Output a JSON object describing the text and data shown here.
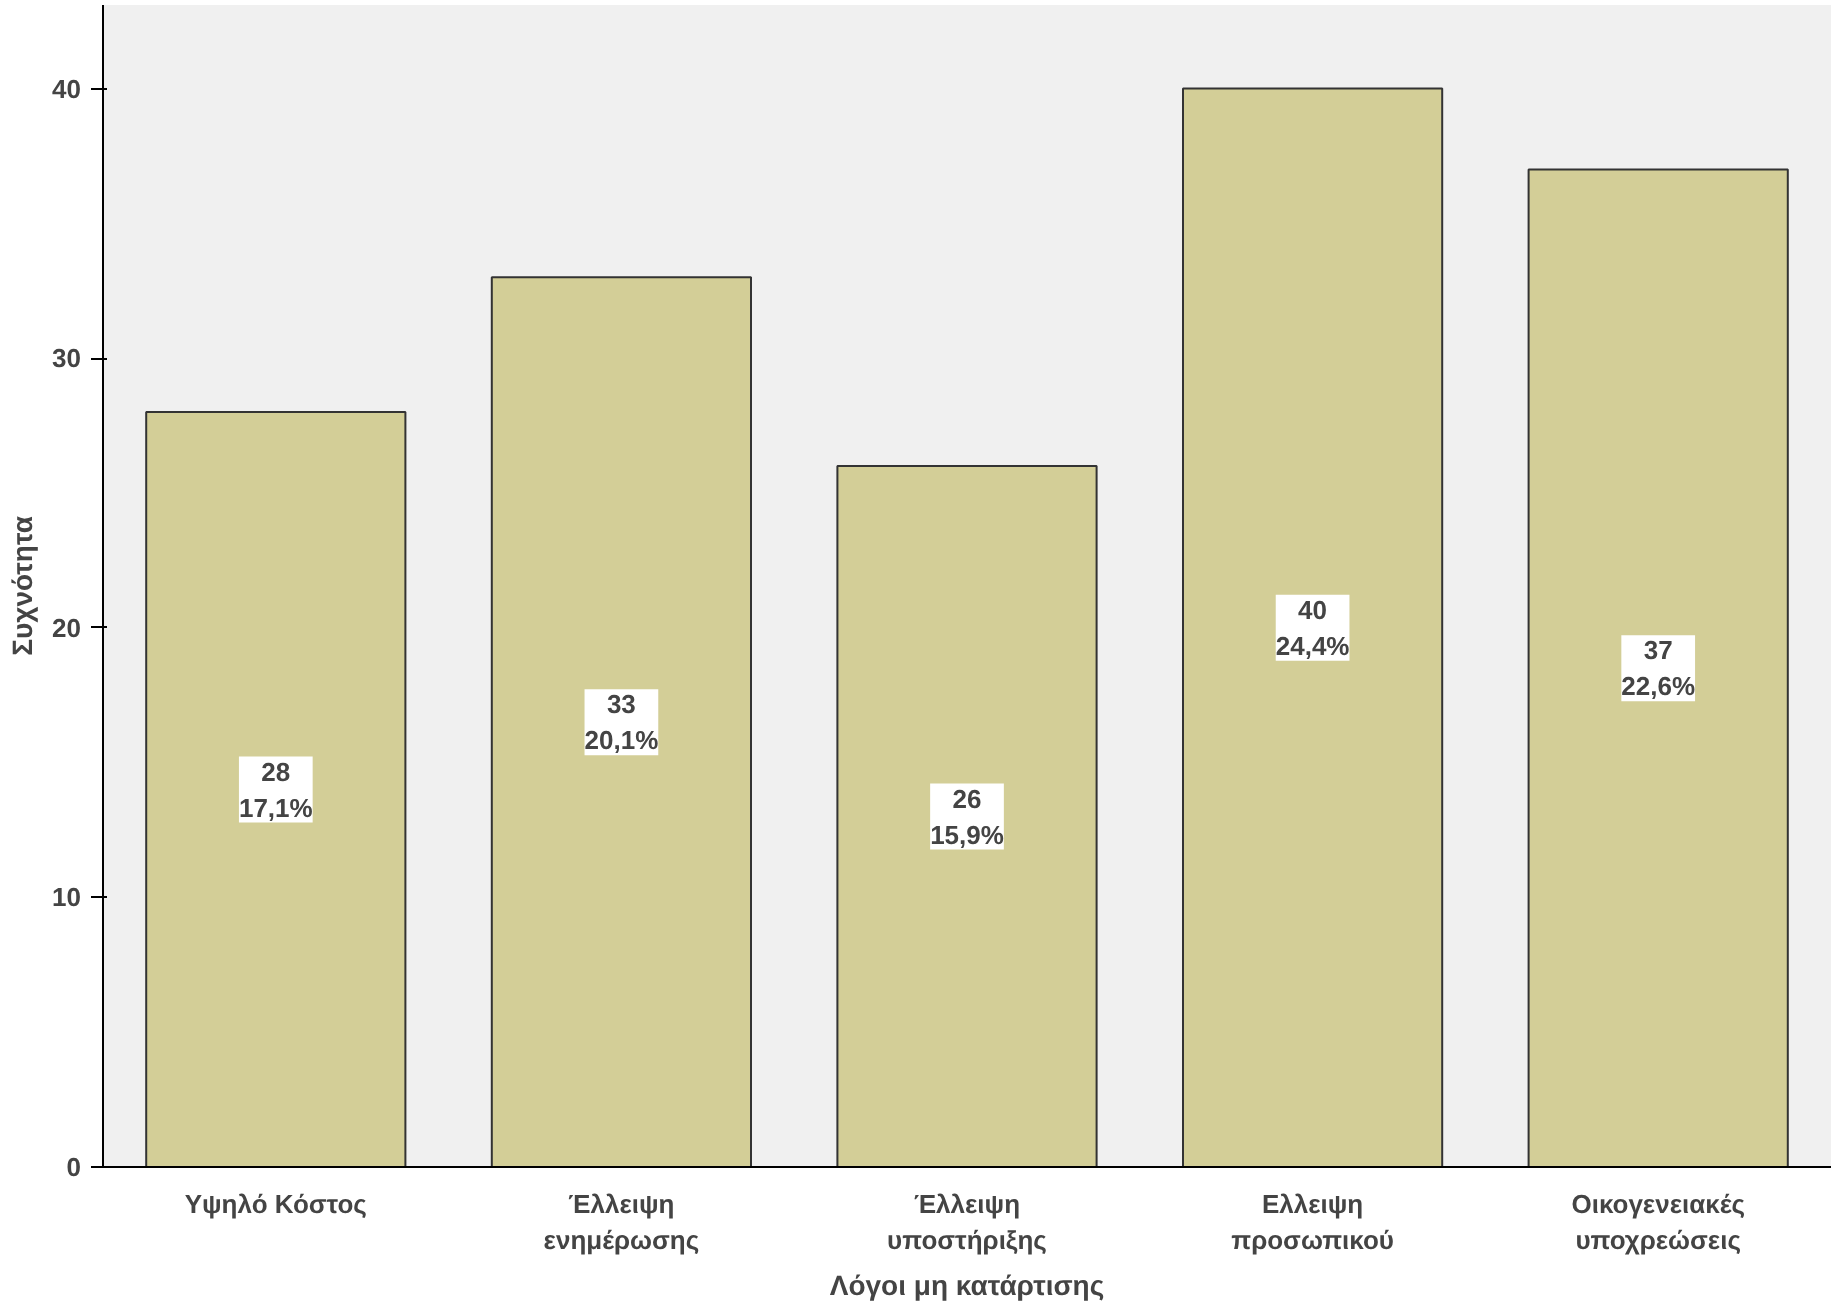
{
  "chart_data": {
    "type": "bar",
    "xlabel": "Λόγοι μη κατάρτισης",
    "ylabel": "Συχνότητα",
    "categories": [
      "Υψηλό Κόστος",
      "Έλλειψη\nενημέρωσης",
      "Έλλειψη\nυποστήριξης",
      "Ελλειψη\nπροσωπικού",
      "Οικογενειακές\nυποχρεώσεις"
    ],
    "values": [
      28,
      33,
      26,
      40,
      37
    ],
    "color": "#d3ce97",
    "value_labels": [
      "28\n17,1%",
      "33\n20,1%",
      "26\n15,9%",
      "40\n24,4%",
      "37\n22,6%"
    ],
    "ylim": [
      0,
      43.1
    ],
    "yticks": [
      0,
      10,
      20,
      30,
      40
    ],
    "grid": false
  }
}
